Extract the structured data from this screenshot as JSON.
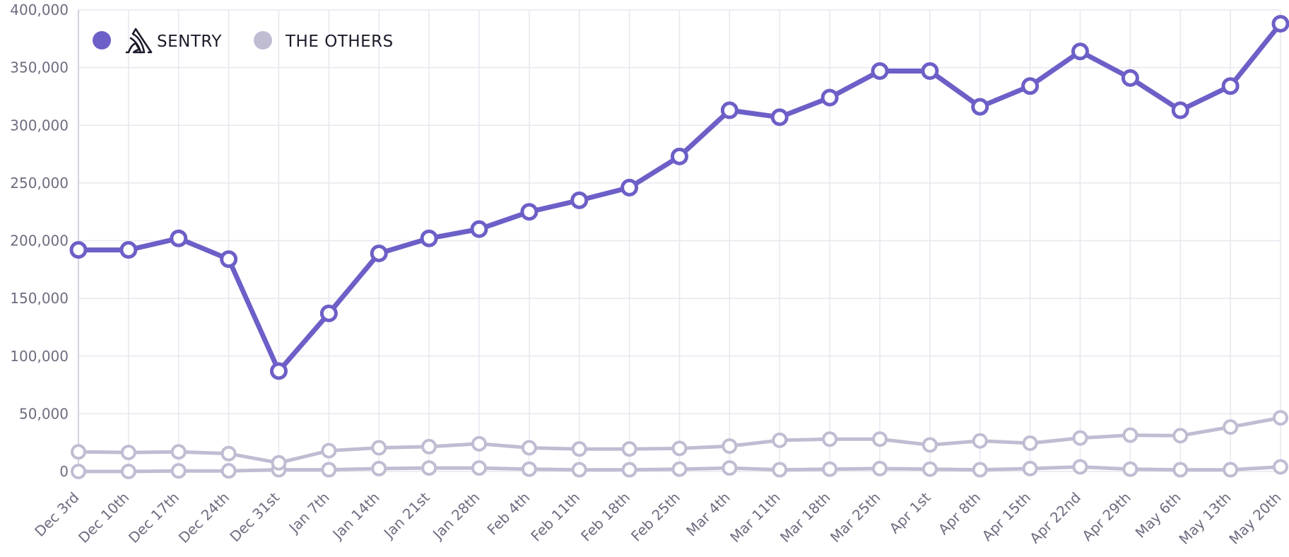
{
  "chart_data": {
    "type": "line",
    "title": "",
    "xlabel": "",
    "ylabel": "",
    "ylim": [
      0,
      400000
    ],
    "y_ticks": [
      0,
      50000,
      100000,
      150000,
      200000,
      250000,
      300000,
      350000,
      400000
    ],
    "y_tick_labels": [
      "0",
      "50,000",
      "100,000",
      "150,000",
      "200,000",
      "250,000",
      "300,000",
      "350,000",
      "400,000"
    ],
    "grid": true,
    "legend_position": "top-left",
    "categories": [
      "Dec 3rd",
      "Dec 10th",
      "Dec 17th",
      "Dec 24th",
      "Dec 31st",
      "Jan 7th",
      "Jan 14th",
      "Jan 21st",
      "Jan 28th",
      "Feb 4th",
      "Feb 11th",
      "Feb 18th",
      "Feb 25th",
      "Mar 4th",
      "Mar 11th",
      "Mar 18th",
      "Mar 25th",
      "Apr 1st",
      "Apr 8th",
      "Apr 15th",
      "Apr 22nd",
      "Apr 29th",
      "May 6th",
      "May 13th",
      "May 20th"
    ],
    "series": [
      {
        "name": "SENTRY",
        "color": "#6c5fc7",
        "values": [
          192000,
          192000,
          202000,
          184000,
          87000,
          137000,
          189000,
          202000,
          210000,
          225000,
          235000,
          246000,
          273000,
          313000,
          307000,
          324000,
          347000,
          347000,
          316000,
          334000,
          364000,
          341000,
          313000,
          334000,
          388000
        ]
      },
      {
        "name": "THE OTHERS",
        "color": "#c0bcd2",
        "values": [
          17000,
          16500,
          17000,
          15500,
          7500,
          18000,
          20500,
          21500,
          24000,
          20500,
          19500,
          19500,
          20000,
          22000,
          27000,
          28000,
          28000,
          23000,
          26500,
          24500,
          29000,
          31500,
          31000,
          38500,
          46500
        ]
      },
      {
        "color": "#c0bcd2",
        "values": [
          0,
          0,
          500,
          500,
          1500,
          1500,
          2500,
          3000,
          3000,
          2000,
          1500,
          1500,
          2000,
          3000,
          1500,
          2000,
          2500,
          2000,
          1500,
          2500,
          4000,
          2000,
          1500,
          1500,
          4000
        ]
      }
    ]
  },
  "legend": {
    "items": [
      {
        "label": "SENTRY",
        "color": "#6c5fc7",
        "icon": "sentry-logo-icon"
      },
      {
        "label": "THE OTHERS",
        "color": "#c0bcd2"
      }
    ]
  }
}
